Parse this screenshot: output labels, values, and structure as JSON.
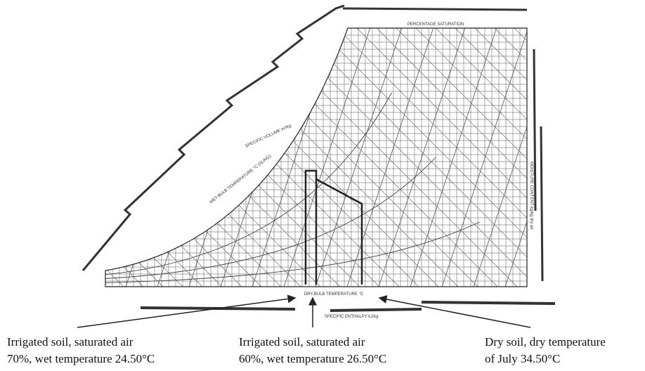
{
  "chart": {
    "labels": {
      "top_scale": "PERCENTAGE SATURATION",
      "volume": "SPECIFIC VOLUME m³/kg",
      "wet_bulb": "WET-BULB TEMPERATURE °C (SLING)",
      "dry_bulb": "DRY-BULB TEMPERATURE °C",
      "enthalpy": "SPECIFIC ENTHALPY kJ/kg",
      "moisture": "MOISTURE CONTENT kg/kg dry air"
    }
  },
  "annotations": [
    {
      "lines": [
        "Irrigated soil, saturated air",
        "70%, wet temperature 24.50°C"
      ]
    },
    {
      "lines": [
        "Irrigated soil, saturated air",
        "60%, wet temperature 26.50°C"
      ]
    },
    {
      "lines": [
        "Dry soil, dry temperature",
        "of July 34.50°C"
      ]
    }
  ]
}
